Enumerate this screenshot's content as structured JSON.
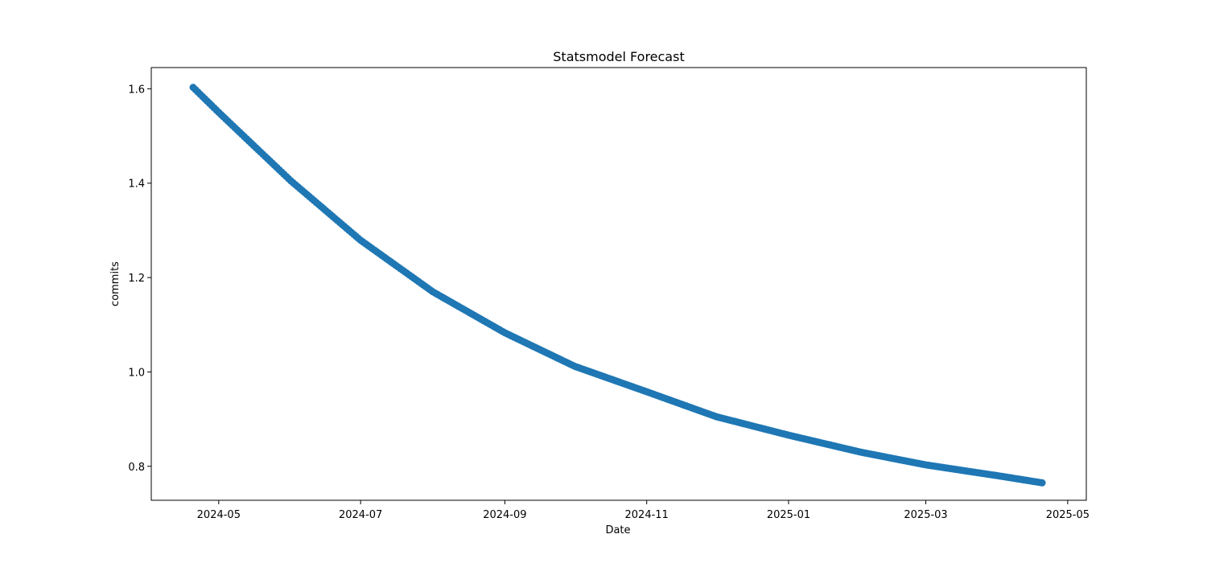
{
  "chart_data": {
    "type": "scatter",
    "title": "Statsmodel Forecast",
    "xlabel": "Date",
    "ylabel": "commits",
    "x_start": "2024-04-20",
    "x_end": "2025-04-20",
    "xlim": [
      "2024-04-02",
      "2025-05-09"
    ],
    "ylim": [
      0.728,
      1.645
    ],
    "x_ticks": [
      "2024-05",
      "2024-07",
      "2024-09",
      "2024-11",
      "2025-01",
      "2025-03",
      "2025-05"
    ],
    "y_ticks": [
      "0.8",
      "1.0",
      "1.2",
      "1.4",
      "1.6"
    ],
    "sampled_points": [
      {
        "x": "2024-04-20",
        "y": 1.603
      },
      {
        "x": "2024-05-01",
        "y": 1.55
      },
      {
        "x": "2024-06-01",
        "y": 1.405
      },
      {
        "x": "2024-07-01",
        "y": 1.279
      },
      {
        "x": "2024-08-01",
        "y": 1.17
      },
      {
        "x": "2024-09-01",
        "y": 1.083
      },
      {
        "x": "2024-10-01",
        "y": 1.012
      },
      {
        "x": "2024-11-01",
        "y": 0.958
      },
      {
        "x": "2024-12-01",
        "y": 0.905
      },
      {
        "x": "2025-01-01",
        "y": 0.866
      },
      {
        "x": "2025-02-01",
        "y": 0.83
      },
      {
        "x": "2025-03-01",
        "y": 0.803
      },
      {
        "x": "2025-04-01",
        "y": 0.78
      },
      {
        "x": "2025-04-20",
        "y": 0.765
      }
    ],
    "grid": false,
    "marker_color": "#1f77b4"
  }
}
